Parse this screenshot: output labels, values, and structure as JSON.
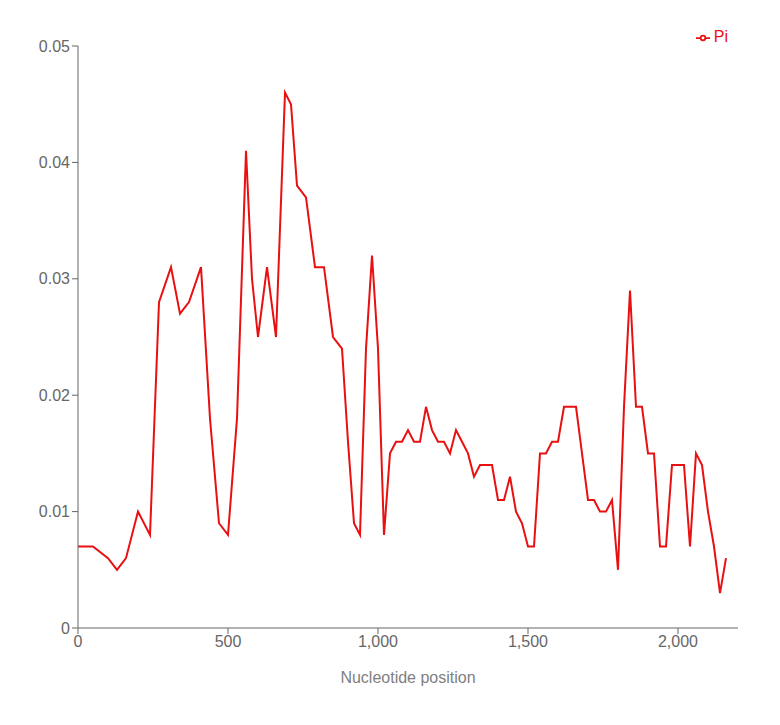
{
  "chart_data": {
    "type": "line",
    "xlabel": "Nucleotide position",
    "x": [
      0,
      50,
      100,
      130,
      160,
      200,
      240,
      270,
      310,
      340,
      370,
      410,
      440,
      470,
      500,
      530,
      560,
      580,
      600,
      630,
      660,
      690,
      710,
      730,
      760,
      790,
      820,
      850,
      880,
      900,
      920,
      940,
      960,
      980,
      1000,
      1020,
      1040,
      1060,
      1080,
      1100,
      1120,
      1140,
      1160,
      1180,
      1200,
      1220,
      1240,
      1260,
      1280,
      1300,
      1320,
      1340,
      1360,
      1380,
      1400,
      1420,
      1440,
      1460,
      1480,
      1500,
      1520,
      1540,
      1560,
      1580,
      1600,
      1620,
      1640,
      1660,
      1680,
      1700,
      1720,
      1740,
      1760,
      1780,
      1800,
      1820,
      1840,
      1860,
      1880,
      1900,
      1920,
      1940,
      1960,
      1980,
      2000,
      2020,
      2040,
      2060,
      2080,
      2100,
      2120,
      2140,
      2160
    ],
    "series": [
      {
        "name": "Pi",
        "color": "#e81010",
        "values": [
          0.007,
          0.007,
          0.006,
          0.005,
          0.006,
          0.01,
          0.008,
          0.028,
          0.031,
          0.027,
          0.028,
          0.031,
          0.018,
          0.009,
          0.008,
          0.018,
          0.041,
          0.03,
          0.025,
          0.031,
          0.025,
          0.046,
          0.045,
          0.038,
          0.037,
          0.031,
          0.031,
          0.025,
          0.024,
          0.016,
          0.009,
          0.008,
          0.024,
          0.032,
          0.024,
          0.008,
          0.015,
          0.016,
          0.016,
          0.017,
          0.016,
          0.016,
          0.019,
          0.017,
          0.016,
          0.016,
          0.015,
          0.017,
          0.016,
          0.015,
          0.013,
          0.014,
          0.014,
          0.014,
          0.011,
          0.011,
          0.013,
          0.01,
          0.009,
          0.007,
          0.007,
          0.015,
          0.015,
          0.016,
          0.016,
          0.019,
          0.019,
          0.019,
          0.015,
          0.011,
          0.011,
          0.01,
          0.01,
          0.011,
          0.005,
          0.019,
          0.029,
          0.019,
          0.019,
          0.015,
          0.015,
          0.007,
          0.007,
          0.014,
          0.014,
          0.014,
          0.007,
          0.015,
          0.014,
          0.01,
          0.007,
          0.003,
          0.006
        ]
      }
    ],
    "xlim": [
      0,
      2200
    ],
    "xticks": [
      0,
      500,
      {
        "value": 1000,
        "label": "1,000"
      },
      {
        "value": 1500,
        "label": "1,500"
      },
      {
        "value": 2000,
        "label": "2,000"
      }
    ],
    "ylim": [
      0,
      0.05
    ],
    "yticks": [
      0,
      0.01,
      0.02,
      0.03,
      0.04,
      0.05
    ],
    "grid": false,
    "legend": "upper right"
  }
}
